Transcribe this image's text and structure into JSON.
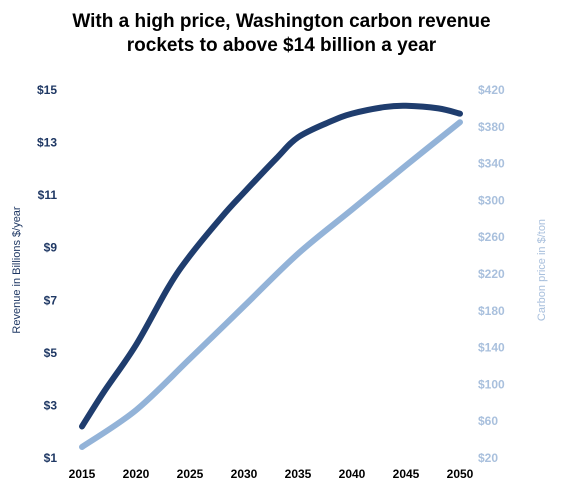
{
  "chart_data": {
    "type": "line",
    "title_line1": "With a high price, Washington carbon revenue",
    "title_line2": "rockets to above $14 billion a year",
    "xlabel": "",
    "ylabel_left": "Revenue in Billions $/year",
    "ylabel_right": "Carbon price in $/ton",
    "x": [
      2015,
      2020,
      2025,
      2030,
      2035,
      2040,
      2045,
      2050
    ],
    "x_ticks": [
      "2015",
      "2020",
      "2025",
      "2030",
      "2035",
      "2040",
      "2045",
      "2050"
    ],
    "ylim_left": [
      1,
      15
    ],
    "ylim_right": [
      20,
      420
    ],
    "y_ticks_left": [
      "$1",
      "$3",
      "$5",
      "$7",
      "$9",
      "$11",
      "$13",
      "$15"
    ],
    "y_ticks_right": [
      "$20",
      "$60",
      "$100",
      "$140",
      "$180",
      "$220",
      "$260",
      "$300",
      "$340",
      "$380",
      "$420"
    ],
    "series": [
      {
        "axis": "left",
        "color": "#1f3d6e",
        "x": [
          2015,
          2017,
          2020,
          2023,
          2025,
          2028,
          2030,
          2033,
          2035,
          2038,
          2040,
          2043,
          2045,
          2048,
          2050
        ],
        "values": [
          2.2,
          3.5,
          5.3,
          7.5,
          8.7,
          10.2,
          11.1,
          12.4,
          13.2,
          13.8,
          14.1,
          14.35,
          14.4,
          14.3,
          14.1
        ]
      },
      {
        "axis": "right",
        "color": "#93b3d8",
        "x": [
          2015,
          2020,
          2025,
          2030,
          2035,
          2040,
          2045,
          2050
        ],
        "values": [
          32,
          72,
          128,
          185,
          242,
          290,
          338,
          385
        ]
      }
    ],
    "grid": false,
    "legend": "none"
  }
}
